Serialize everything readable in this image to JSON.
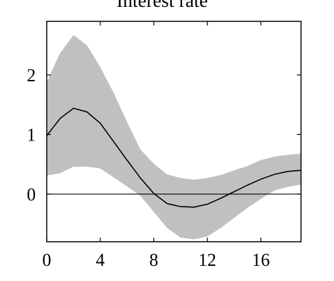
{
  "chart_data": {
    "type": "line",
    "title": "Interest rate",
    "xlabel": "",
    "ylabel": "",
    "xlim": [
      0,
      19
    ],
    "ylim": [
      -0.8,
      2.9
    ],
    "xticks": [
      0,
      4,
      8,
      12,
      16
    ],
    "yticks": [
      0,
      1,
      2
    ],
    "xtick_labels": [
      "0",
      "4",
      "8",
      "12",
      "16"
    ],
    "ytick_labels": [
      "0",
      "1",
      "2"
    ],
    "grid": false,
    "zero_line": 0,
    "band_color": "#c0c0c0",
    "line_color": "#000000",
    "series": [
      {
        "type": "line",
        "x": [
          0,
          1,
          2,
          3,
          4,
          5,
          6,
          7,
          8,
          9,
          10,
          11,
          12,
          13,
          14,
          15,
          16,
          17,
          18,
          19
        ],
        "values": [
          0.98,
          1.27,
          1.44,
          1.38,
          1.19,
          0.88,
          0.57,
          0.27,
          0.01,
          -0.16,
          -0.21,
          -0.22,
          -0.17,
          -0.07,
          0.04,
          0.15,
          0.25,
          0.33,
          0.38,
          0.4
        ]
      },
      {
        "type": "band",
        "x": [
          0,
          1,
          2,
          3,
          4,
          5,
          6,
          7,
          8,
          9,
          10,
          11,
          12,
          13,
          14,
          15,
          16,
          17,
          18,
          19
        ],
        "lower": [
          0.31,
          0.35,
          0.46,
          0.46,
          0.43,
          0.28,
          0.13,
          -0.03,
          -0.3,
          -0.57,
          -0.73,
          -0.76,
          -0.71,
          -0.57,
          -0.4,
          -0.23,
          -0.08,
          0.06,
          0.12,
          0.16
        ],
        "upper": [
          1.88,
          2.37,
          2.67,
          2.5,
          2.13,
          1.7,
          1.21,
          0.75,
          0.51,
          0.33,
          0.27,
          0.24,
          0.27,
          0.32,
          0.4,
          0.47,
          0.57,
          0.63,
          0.66,
          0.68
        ]
      }
    ]
  }
}
